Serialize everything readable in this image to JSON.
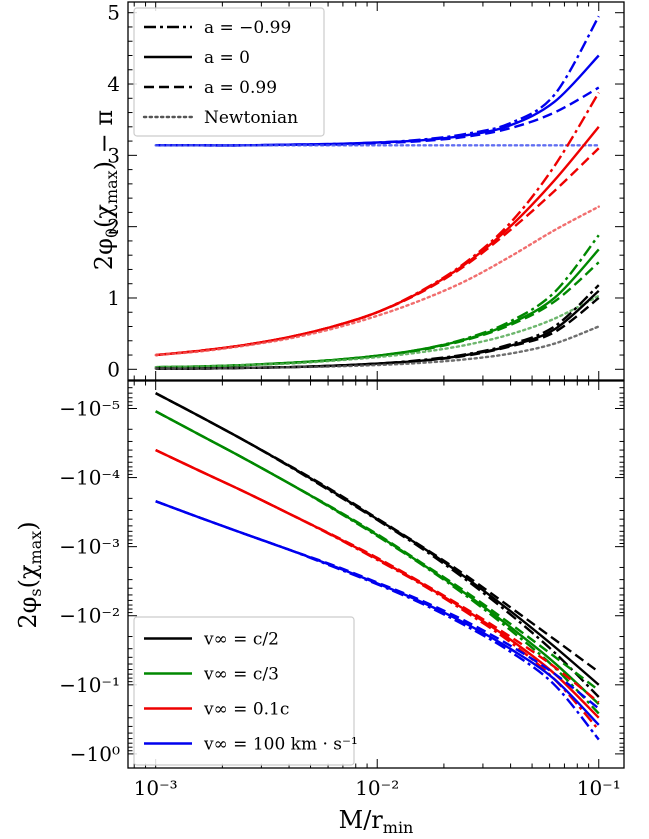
{
  "chart_data": [
    {
      "type": "line",
      "panel": "top",
      "ylabel": "2φ₀(χ_max) − π",
      "xlabel": "",
      "xscale": "log",
      "xlim": [
        0.00075,
        0.13
      ],
      "ylim": [
        -0.15,
        5.15
      ],
      "yticks": [
        {
          "value": 0,
          "label": "0"
        },
        {
          "value": 1,
          "label": "1"
        },
        {
          "value": 2,
          "label": "2"
        },
        {
          "value": 3,
          "label": "3"
        },
        {
          "value": 4,
          "label": "4"
        },
        {
          "value": 5,
          "label": "5"
        }
      ],
      "legend": {
        "placement": "upper-left",
        "entries": [
          {
            "label": "a = −0.99",
            "style": "dashdot"
          },
          {
            "label": "a = 0",
            "style": "solid"
          },
          {
            "label": "a = 0.99",
            "style": "dashed"
          },
          {
            "label": "Newtonian",
            "style": "dotted"
          }
        ]
      },
      "x": [
        0.001,
        0.00158,
        0.00251,
        0.00398,
        0.00631,
        0.01,
        0.0158,
        0.0251,
        0.0398,
        0.0631,
        0.1
      ],
      "series": [
        {
          "color": "#0000ee",
          "style": "dashdot",
          "values": [
            3.14,
            3.14,
            3.14,
            3.15,
            3.16,
            3.18,
            3.22,
            3.3,
            3.45,
            3.85,
            4.95
          ]
        },
        {
          "color": "#0000ee",
          "style": "solid",
          "values": [
            3.14,
            3.14,
            3.14,
            3.15,
            3.16,
            3.18,
            3.21,
            3.28,
            3.42,
            3.75,
            4.4
          ]
        },
        {
          "color": "#0000ee",
          "style": "dashed",
          "values": [
            3.14,
            3.14,
            3.14,
            3.15,
            3.15,
            3.17,
            3.2,
            3.26,
            3.38,
            3.6,
            3.95
          ]
        },
        {
          "color": "#4455ee",
          "style": "dotted",
          "values": [
            3.14,
            3.14,
            3.14,
            3.14,
            3.14,
            3.14,
            3.14,
            3.14,
            3.14,
            3.14,
            3.14
          ]
        },
        {
          "color": "#ee0000",
          "style": "dashdot",
          "values": [
            0.2,
            0.26,
            0.34,
            0.45,
            0.6,
            0.8,
            1.1,
            1.5,
            2.05,
            2.85,
            3.88
          ]
        },
        {
          "color": "#ee0000",
          "style": "solid",
          "values": [
            0.2,
            0.26,
            0.34,
            0.45,
            0.6,
            0.8,
            1.09,
            1.48,
            2.0,
            2.65,
            3.4
          ]
        },
        {
          "color": "#ee0000",
          "style": "dashed",
          "values": [
            0.2,
            0.26,
            0.34,
            0.45,
            0.6,
            0.8,
            1.08,
            1.46,
            1.95,
            2.5,
            3.1
          ]
        },
        {
          "color": "#ee5555",
          "style": "dotted",
          "values": [
            0.2,
            0.25,
            0.33,
            0.43,
            0.57,
            0.75,
            0.97,
            1.24,
            1.58,
            1.95,
            2.28
          ]
        },
        {
          "color": "#008800",
          "style": "dashdot",
          "values": [
            0.03,
            0.04,
            0.06,
            0.09,
            0.13,
            0.19,
            0.28,
            0.43,
            0.67,
            1.08,
            1.88
          ]
        },
        {
          "color": "#008800",
          "style": "solid",
          "values": [
            0.03,
            0.04,
            0.06,
            0.09,
            0.13,
            0.19,
            0.28,
            0.42,
            0.64,
            1.0,
            1.68
          ]
        },
        {
          "color": "#008800",
          "style": "dashed",
          "values": [
            0.03,
            0.04,
            0.06,
            0.09,
            0.13,
            0.19,
            0.27,
            0.41,
            0.62,
            0.95,
            1.5
          ]
        },
        {
          "color": "#55aa55",
          "style": "dotted",
          "values": [
            0.03,
            0.04,
            0.06,
            0.08,
            0.12,
            0.17,
            0.24,
            0.34,
            0.49,
            0.71,
            1.03
          ]
        },
        {
          "color": "#000000",
          "style": "dashdot",
          "values": [
            0.01,
            0.01,
            0.02,
            0.03,
            0.05,
            0.08,
            0.13,
            0.21,
            0.35,
            0.6,
            1.18
          ]
        },
        {
          "color": "#000000",
          "style": "solid",
          "values": [
            0.01,
            0.01,
            0.02,
            0.03,
            0.05,
            0.08,
            0.12,
            0.2,
            0.33,
            0.56,
            1.1
          ]
        },
        {
          "color": "#000000",
          "style": "dashed",
          "values": [
            0.01,
            0.01,
            0.02,
            0.03,
            0.05,
            0.08,
            0.12,
            0.19,
            0.32,
            0.52,
            1.0
          ]
        },
        {
          "color": "#555555",
          "style": "dotted",
          "values": [
            0.01,
            0.01,
            0.02,
            0.03,
            0.04,
            0.06,
            0.09,
            0.14,
            0.22,
            0.36,
            0.6
          ]
        }
      ]
    },
    {
      "type": "line",
      "panel": "bottom",
      "ylabel": "2φ_s(χ_max)",
      "xlabel": "M/r_min",
      "xscale": "log",
      "yscale": "log-magnitude (negative values)",
      "xlim": [
        0.00075,
        0.13
      ],
      "ylim_magnitude": [
        4e-06,
        1.6
      ],
      "xticks": [
        {
          "value": 0.001,
          "label": "10⁻³"
        },
        {
          "value": 0.01,
          "label": "10⁻²"
        },
        {
          "value": 0.1,
          "label": "10⁻¹"
        }
      ],
      "yticks": [
        {
          "value": -1e-05,
          "label": "−10⁻⁵"
        },
        {
          "value": -0.0001,
          "label": "−10⁻⁴"
        },
        {
          "value": -0.001,
          "label": "−10⁻³"
        },
        {
          "value": -0.01,
          "label": "−10⁻²"
        },
        {
          "value": -0.1,
          "label": "−10⁻¹"
        },
        {
          "value": -1,
          "label": "−10⁰"
        }
      ],
      "legend": {
        "placement": "lower-left",
        "entries": [
          {
            "label": "v∞ = c/2",
            "color": "#000000"
          },
          {
            "label": "v∞ = c/3",
            "color": "#008800"
          },
          {
            "label": "v∞ = 0.1c",
            "color": "#ee0000"
          },
          {
            "label": "v∞ = 100 km · s⁻¹",
            "color": "#0000ee"
          }
        ]
      },
      "x": [
        0.001,
        0.00158,
        0.00251,
        0.00398,
        0.00631,
        0.01,
        0.0158,
        0.0251,
        0.0398,
        0.0631,
        0.1
      ],
      "series": [
        {
          "color": "#000000",
          "style": "solid",
          "values": [
            -6e-06,
            -1.3e-05,
            -2.9e-05,
            -6.7e-05,
            -0.00016,
            -0.0004,
            -0.001,
            -0.0028,
            -0.0085,
            -0.028,
            -0.1
          ]
        },
        {
          "color": "#000000",
          "style": "dashed",
          "values": [
            -6e-06,
            -1.3e-05,
            -2.9e-05,
            -6.6e-05,
            -0.000155,
            -0.00039,
            -0.00098,
            -0.0026,
            -0.0075,
            -0.022,
            -0.065
          ]
        },
        {
          "color": "#000000",
          "style": "dashdot",
          "values": [
            -6e-06,
            -1.3e-05,
            -2.9e-05,
            -6.8e-05,
            -0.000165,
            -0.00041,
            -0.00105,
            -0.003,
            -0.0095,
            -0.034,
            -0.15
          ]
        },
        {
          "color": "#008800",
          "style": "solid",
          "values": [
            -1.1e-05,
            -2.4e-05,
            -5.3e-05,
            -0.00012,
            -0.00028,
            -0.00068,
            -0.00175,
            -0.0048,
            -0.0145,
            -0.048,
            -0.19
          ]
        },
        {
          "color": "#008800",
          "style": "dashed",
          "values": [
            -1.1e-05,
            -2.4e-05,
            -5.3e-05,
            -0.00012,
            -0.000275,
            -0.00066,
            -0.0017,
            -0.0045,
            -0.013,
            -0.039,
            -0.12
          ]
        },
        {
          "color": "#008800",
          "style": "dashdot",
          "values": [
            -1.1e-05,
            -2.4e-05,
            -5.3e-05,
            -0.00012,
            -0.000285,
            -0.0007,
            -0.0018,
            -0.0051,
            -0.016,
            -0.056,
            -0.26
          ]
        },
        {
          "color": "#ee0000",
          "style": "solid",
          "values": [
            -4e-05,
            -8e-05,
            -0.00016,
            -0.00033,
            -0.00069,
            -0.0015,
            -0.0034,
            -0.0083,
            -0.022,
            -0.069,
            -0.3
          ]
        },
        {
          "color": "#ee0000",
          "style": "dashed",
          "values": [
            -4e-05,
            -8e-05,
            -0.00016,
            -0.00033,
            -0.00068,
            -0.00145,
            -0.0033,
            -0.0079,
            -0.02,
            -0.055,
            -0.18
          ]
        },
        {
          "color": "#ee0000",
          "style": "dashdot",
          "values": [
            -4e-05,
            -8e-05,
            -0.00016,
            -0.00033,
            -0.0007,
            -0.00155,
            -0.0035,
            -0.0088,
            -0.024,
            -0.083,
            -0.45
          ]
        },
        {
          "color": "#0000ee",
          "style": "solid",
          "values": [
            -0.00022,
            -0.00038,
            -0.00065,
            -0.0011,
            -0.0019,
            -0.0034,
            -0.0063,
            -0.013,
            -0.03,
            -0.083,
            -0.38
          ]
        },
        {
          "color": "#0000ee",
          "style": "dashed",
          "values": [
            -0.00022,
            -0.00038,
            -0.00065,
            -0.0011,
            -0.00185,
            -0.0033,
            -0.006,
            -0.012,
            -0.027,
            -0.069,
            -0.22
          ]
        },
        {
          "color": "#0000ee",
          "style": "dashdot",
          "values": [
            -0.00022,
            -0.00038,
            -0.00065,
            -0.0011,
            -0.00195,
            -0.0035,
            -0.0066,
            -0.014,
            -0.033,
            -0.1,
            -0.62
          ]
        }
      ]
    }
  ]
}
